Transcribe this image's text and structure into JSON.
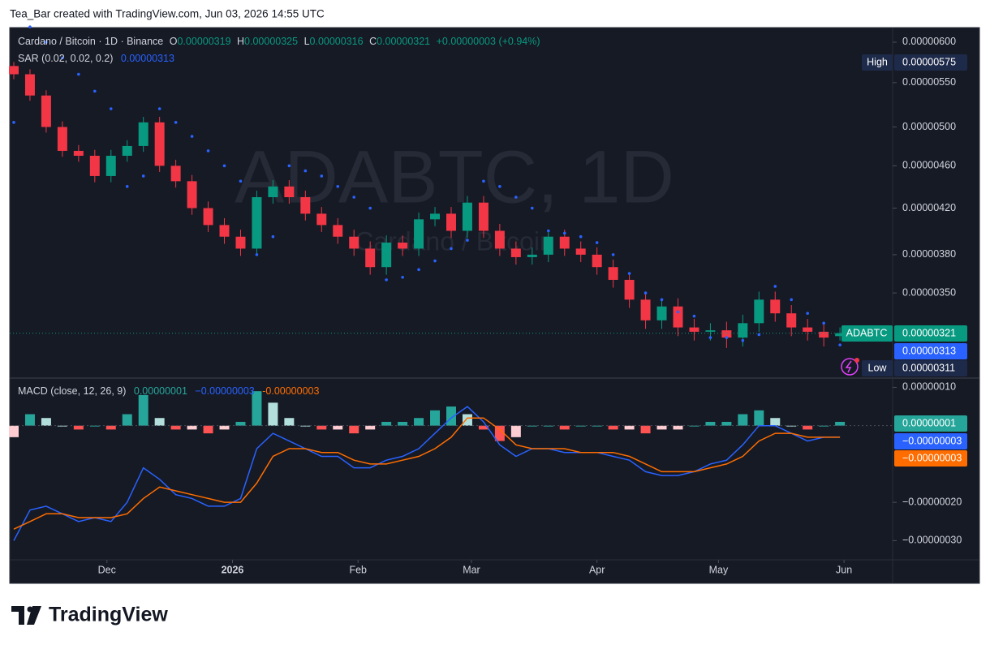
{
  "header": {
    "text": "Tea_Bar created with TradingView.com, Jun 03, 2026 14:55 UTC"
  },
  "legend": {
    "symbol": "Cardano / Bitcoin · 1D · Binance",
    "o_label": "O",
    "open": "0.00000319",
    "h_label": "H",
    "high": "0.00000325",
    "l_label": "L",
    "low": "0.00000316",
    "c_label": "C",
    "close": "0.00000321",
    "change": "+0.00000003 (+0.94%)",
    "sar_label": "SAR (0.02, 0.02, 0.2)",
    "sar_value": "0.00000313",
    "macd_label": "MACD (close, 12, 26, 9)",
    "macd_hist": "0.00000001",
    "macd_line": "−0.00000003",
    "macd_signal": "-0.00000003"
  },
  "tags": {
    "high_label": "High",
    "high_value": "0.00000575",
    "symbol": "ADABTC",
    "last": "0.00000321",
    "sar": "0.00000313",
    "low_label": "Low",
    "low_value": "0.00000311",
    "hist": "0.00000001",
    "macd": "−0.00000003",
    "signal": "−0.00000003"
  },
  "watermark": {
    "main": "ADABTC, 1D",
    "sub": "Cardano / Bitcoin"
  },
  "footer": {
    "brand": "TradingView"
  },
  "chart_data": {
    "type": "candlestick",
    "log": true,
    "x": [
      1,
      5,
      9,
      13,
      17,
      21,
      25,
      29,
      33,
      37,
      41,
      45,
      49,
      53,
      57,
      61,
      65,
      69,
      73,
      77,
      81,
      85,
      89,
      93,
      97,
      101,
      105,
      109,
      113,
      117,
      121,
      125,
      129,
      133,
      137,
      141,
      145,
      149,
      153,
      157,
      161,
      165,
      169,
      173,
      177,
      181,
      185,
      189,
      193,
      197,
      201,
      205
    ],
    "xlim": [
      0,
      218
    ],
    "xticks": [
      {
        "value": 24,
        "label": "Dec"
      },
      {
        "value": 55,
        "label": "2026"
      },
      {
        "value": 86,
        "label": "Feb"
      },
      {
        "value": 114,
        "label": "Mar"
      },
      {
        "value": 145,
        "label": "Apr"
      },
      {
        "value": 175,
        "label": "May"
      },
      {
        "value": 206,
        "label": "Jun"
      }
    ],
    "ylim": [
      2.92e-06,
      6.18e-06
    ],
    "yticks": [
      {
        "value": 6e-06,
        "label": "0.00000600"
      },
      {
        "value": 5.5e-06,
        "label": "0.00000550"
      },
      {
        "value": 5e-06,
        "label": "0.00000500"
      },
      {
        "value": 4.6e-06,
        "label": "0.00000460"
      },
      {
        "value": 4.2e-06,
        "label": "0.00000420"
      },
      {
        "value": 3.8e-06,
        "label": "0.00000380"
      },
      {
        "value": 3.5e-06,
        "label": "0.00000350"
      }
    ],
    "up_color": "#089981",
    "down_color": "#f23645",
    "candles": {
      "open": [
        5.7e-06,
        5.6e-06,
        5.35e-06,
        5e-06,
        4.75e-06,
        4.7e-06,
        4.5e-06,
        4.7e-06,
        4.8e-06,
        5.05e-06,
        4.6e-06,
        4.45e-06,
        4.2e-06,
        4.05e-06,
        3.95e-06,
        3.85e-06,
        4.3e-06,
        4.4e-06,
        4.3e-06,
        4.15e-06,
        4.05e-06,
        3.95e-06,
        3.85e-06,
        3.7e-06,
        3.9e-06,
        3.85e-06,
        4.1e-06,
        4.15e-06,
        4e-06,
        4.25e-06,
        4e-06,
        3.85e-06,
        3.78e-06,
        3.8e-06,
        3.95e-06,
        3.85e-06,
        3.8e-06,
        3.7e-06,
        3.6e-06,
        3.45e-06,
        3.3e-06,
        3.4e-06,
        3.25e-06,
        3.22e-06,
        3.23e-06,
        3.18e-06,
        3.28e-06,
        3.45e-06,
        3.35e-06,
        3.25e-06,
        3.22e-06,
        3.19e-06
      ],
      "high": [
        5.75e-06,
        5.66e-06,
        5.41e-06,
        5.06e-06,
        4.81e-06,
        4.76e-06,
        4.76e-06,
        4.86e-06,
        5.11e-06,
        5.11e-06,
        4.66e-06,
        4.51e-06,
        4.26e-06,
        4.11e-06,
        4.01e-06,
        4.36e-06,
        4.46e-06,
        4.46e-06,
        4.36e-06,
        4.21e-06,
        4.11e-06,
        4.01e-06,
        3.91e-06,
        3.96e-06,
        3.96e-06,
        4.16e-06,
        4.21e-06,
        4.21e-06,
        4.31e-06,
        4.31e-06,
        4.06e-06,
        3.91e-06,
        3.86e-06,
        4.01e-06,
        4.01e-06,
        3.91e-06,
        3.86e-06,
        3.76e-06,
        3.66e-06,
        3.51e-06,
        3.46e-06,
        3.46e-06,
        3.31e-06,
        3.28e-06,
        3.29e-06,
        3.34e-06,
        3.51e-06,
        3.51e-06,
        3.41e-06,
        3.31e-06,
        3.28e-06,
        3.25e-06
      ],
      "low": [
        5.54e-06,
        5.29e-06,
        4.94e-06,
        4.69e-06,
        4.64e-06,
        4.44e-06,
        4.44e-06,
        4.64e-06,
        4.74e-06,
        4.54e-06,
        4.39e-06,
        4.14e-06,
        3.99e-06,
        3.89e-06,
        3.79e-06,
        3.79e-06,
        4.24e-06,
        4.24e-06,
        4.09e-06,
        3.99e-06,
        3.89e-06,
        3.79e-06,
        3.64e-06,
        3.64e-06,
        3.79e-06,
        3.79e-06,
        4.04e-06,
        3.94e-06,
        3.94e-06,
        3.94e-06,
        3.79e-06,
        3.72e-06,
        3.72e-06,
        3.74e-06,
        3.79e-06,
        3.74e-06,
        3.64e-06,
        3.54e-06,
        3.39e-06,
        3.24e-06,
        3.24e-06,
        3.19e-06,
        3.16e-06,
        3.16e-06,
        3.11e-06,
        3.12e-06,
        3.22e-06,
        3.29e-06,
        3.19e-06,
        3.16e-06,
        3.12e-06,
        3.16e-06
      ],
      "close": [
        5.6e-06,
        5.35e-06,
        5e-06,
        4.75e-06,
        4.7e-06,
        4.5e-06,
        4.7e-06,
        4.8e-06,
        5.05e-06,
        4.6e-06,
        4.45e-06,
        4.2e-06,
        4.05e-06,
        3.95e-06,
        3.85e-06,
        4.3e-06,
        4.4e-06,
        4.3e-06,
        4.15e-06,
        4.05e-06,
        3.95e-06,
        3.85e-06,
        3.7e-06,
        3.9e-06,
        3.85e-06,
        4.1e-06,
        4.15e-06,
        4e-06,
        4.25e-06,
        4e-06,
        3.85e-06,
        3.78e-06,
        3.8e-06,
        3.95e-06,
        3.85e-06,
        3.8e-06,
        3.7e-06,
        3.6e-06,
        3.45e-06,
        3.3e-06,
        3.4e-06,
        3.25e-06,
        3.22e-06,
        3.23e-06,
        3.18e-06,
        3.28e-06,
        3.45e-06,
        3.35e-06,
        3.25e-06,
        3.22e-06,
        3.18e-06,
        3.21e-06
      ]
    },
    "sar": {
      "color": "#2962ff",
      "values": [
        5.05e-06,
        6.2e-06,
        6e-06,
        5.8e-06,
        5.6e-06,
        5.4e-06,
        5.2e-06,
        4.4e-06,
        4.5e-06,
        5.2e-06,
        5.05e-06,
        4.9e-06,
        4.75e-06,
        4.6e-06,
        4.45e-06,
        3.8e-06,
        3.95e-06,
        4.6e-06,
        4.55e-06,
        4.5e-06,
        4.4e-06,
        4.3e-06,
        4.2e-06,
        3.6e-06,
        3.62e-06,
        3.68e-06,
        3.75e-06,
        3.85e-06,
        3.92e-06,
        4.45e-06,
        4.4e-06,
        4.3e-06,
        4.2e-06,
        4e-06,
        3.98e-06,
        3.95e-06,
        3.9e-06,
        3.8e-06,
        3.65e-06,
        3.5e-06,
        3.45e-06,
        3.36e-06,
        3.33e-06,
        3.18e-06,
        3.18e-06,
        3.16e-06,
        3.2e-06,
        3.55e-06,
        3.45e-06,
        3.35e-06,
        3.28e-06,
        3.13e-06
      ]
    },
    "macd_pane": {
      "ylim": [
        -3.5e-07,
        1.2e-07
      ],
      "yticks": [
        {
          "value": 1e-07,
          "label": "0.00000010"
        },
        {
          "value": -2e-07,
          "label": "−0.00000020"
        },
        {
          "value": -3e-07,
          "label": "−0.00000030"
        }
      ],
      "histogram": {
        "colors": [
          "#26a69a",
          "#b2dfdb",
          "#ff5252",
          "#ffcdd2"
        ],
        "values": [
          -3e-08,
          3e-08,
          2e-08,
          0,
          -1e-08,
          0,
          -1e-08,
          3e-08,
          8e-08,
          2e-08,
          -1e-08,
          -1e-08,
          -2e-08,
          -1e-08,
          1e-08,
          9e-08,
          6e-08,
          2e-08,
          0,
          -1e-08,
          -1e-08,
          -2e-08,
          -1e-08,
          1e-08,
          1e-08,
          2e-08,
          4e-08,
          5e-08,
          3e-08,
          -1e-08,
          -4e-08,
          -3e-08,
          0,
          0,
          -1e-08,
          0,
          0,
          -1e-08,
          -1e-08,
          -2e-08,
          -1e-08,
          -1e-08,
          0,
          1e-08,
          1e-08,
          3e-08,
          4e-08,
          2e-08,
          0,
          -1e-08,
          0,
          1e-08
        ]
      },
      "macd": {
        "color": "#2962ff",
        "values": [
          -3e-07,
          -2.2e-07,
          -2.1e-07,
          -2.3e-07,
          -2.5e-07,
          -2.4e-07,
          -2.5e-07,
          -2e-07,
          -1.1e-07,
          -1.4e-07,
          -1.8e-07,
          -1.9e-07,
          -2.1e-07,
          -2.1e-07,
          -1.9e-07,
          -6e-08,
          -2e-08,
          -4e-08,
          -6e-08,
          -8e-08,
          -8e-08,
          -1.1e-07,
          -1.1e-07,
          -9e-08,
          -8e-08,
          -6e-08,
          -2e-08,
          2e-08,
          5e-08,
          1e-08,
          -5e-08,
          -8e-08,
          -6e-08,
          -6e-08,
          -7e-08,
          -7e-08,
          -7e-08,
          -8e-08,
          -9e-08,
          -1.2e-07,
          -1.3e-07,
          -1.3e-07,
          -1.2e-07,
          -1e-07,
          -9e-08,
          -5e-08,
          0,
          0,
          -2e-08,
          -4e-08,
          -3e-08,
          -3e-08
        ]
      },
      "signal": {
        "color": "#ff6d00",
        "values": [
          -2.7e-07,
          -2.5e-07,
          -2.3e-07,
          -2.3e-07,
          -2.4e-07,
          -2.4e-07,
          -2.4e-07,
          -2.3e-07,
          -1.9e-07,
          -1.6e-07,
          -1.7e-07,
          -1.8e-07,
          -1.9e-07,
          -2e-07,
          -2e-07,
          -1.5e-07,
          -8e-08,
          -6e-08,
          -6e-08,
          -7e-08,
          -7e-08,
          -9e-08,
          -1e-07,
          -1e-07,
          -9e-08,
          -8e-08,
          -6e-08,
          -3e-08,
          2e-08,
          2e-08,
          -1e-08,
          -5e-08,
          -6e-08,
          -6e-08,
          -6e-08,
          -7e-08,
          -7e-08,
          -7e-08,
          -8e-08,
          -1e-07,
          -1.2e-07,
          -1.2e-07,
          -1.2e-07,
          -1.1e-07,
          -1e-07,
          -8e-08,
          -4e-08,
          -2e-08,
          -2e-08,
          -3e-08,
          -3e-08,
          -3e-08
        ]
      }
    }
  }
}
